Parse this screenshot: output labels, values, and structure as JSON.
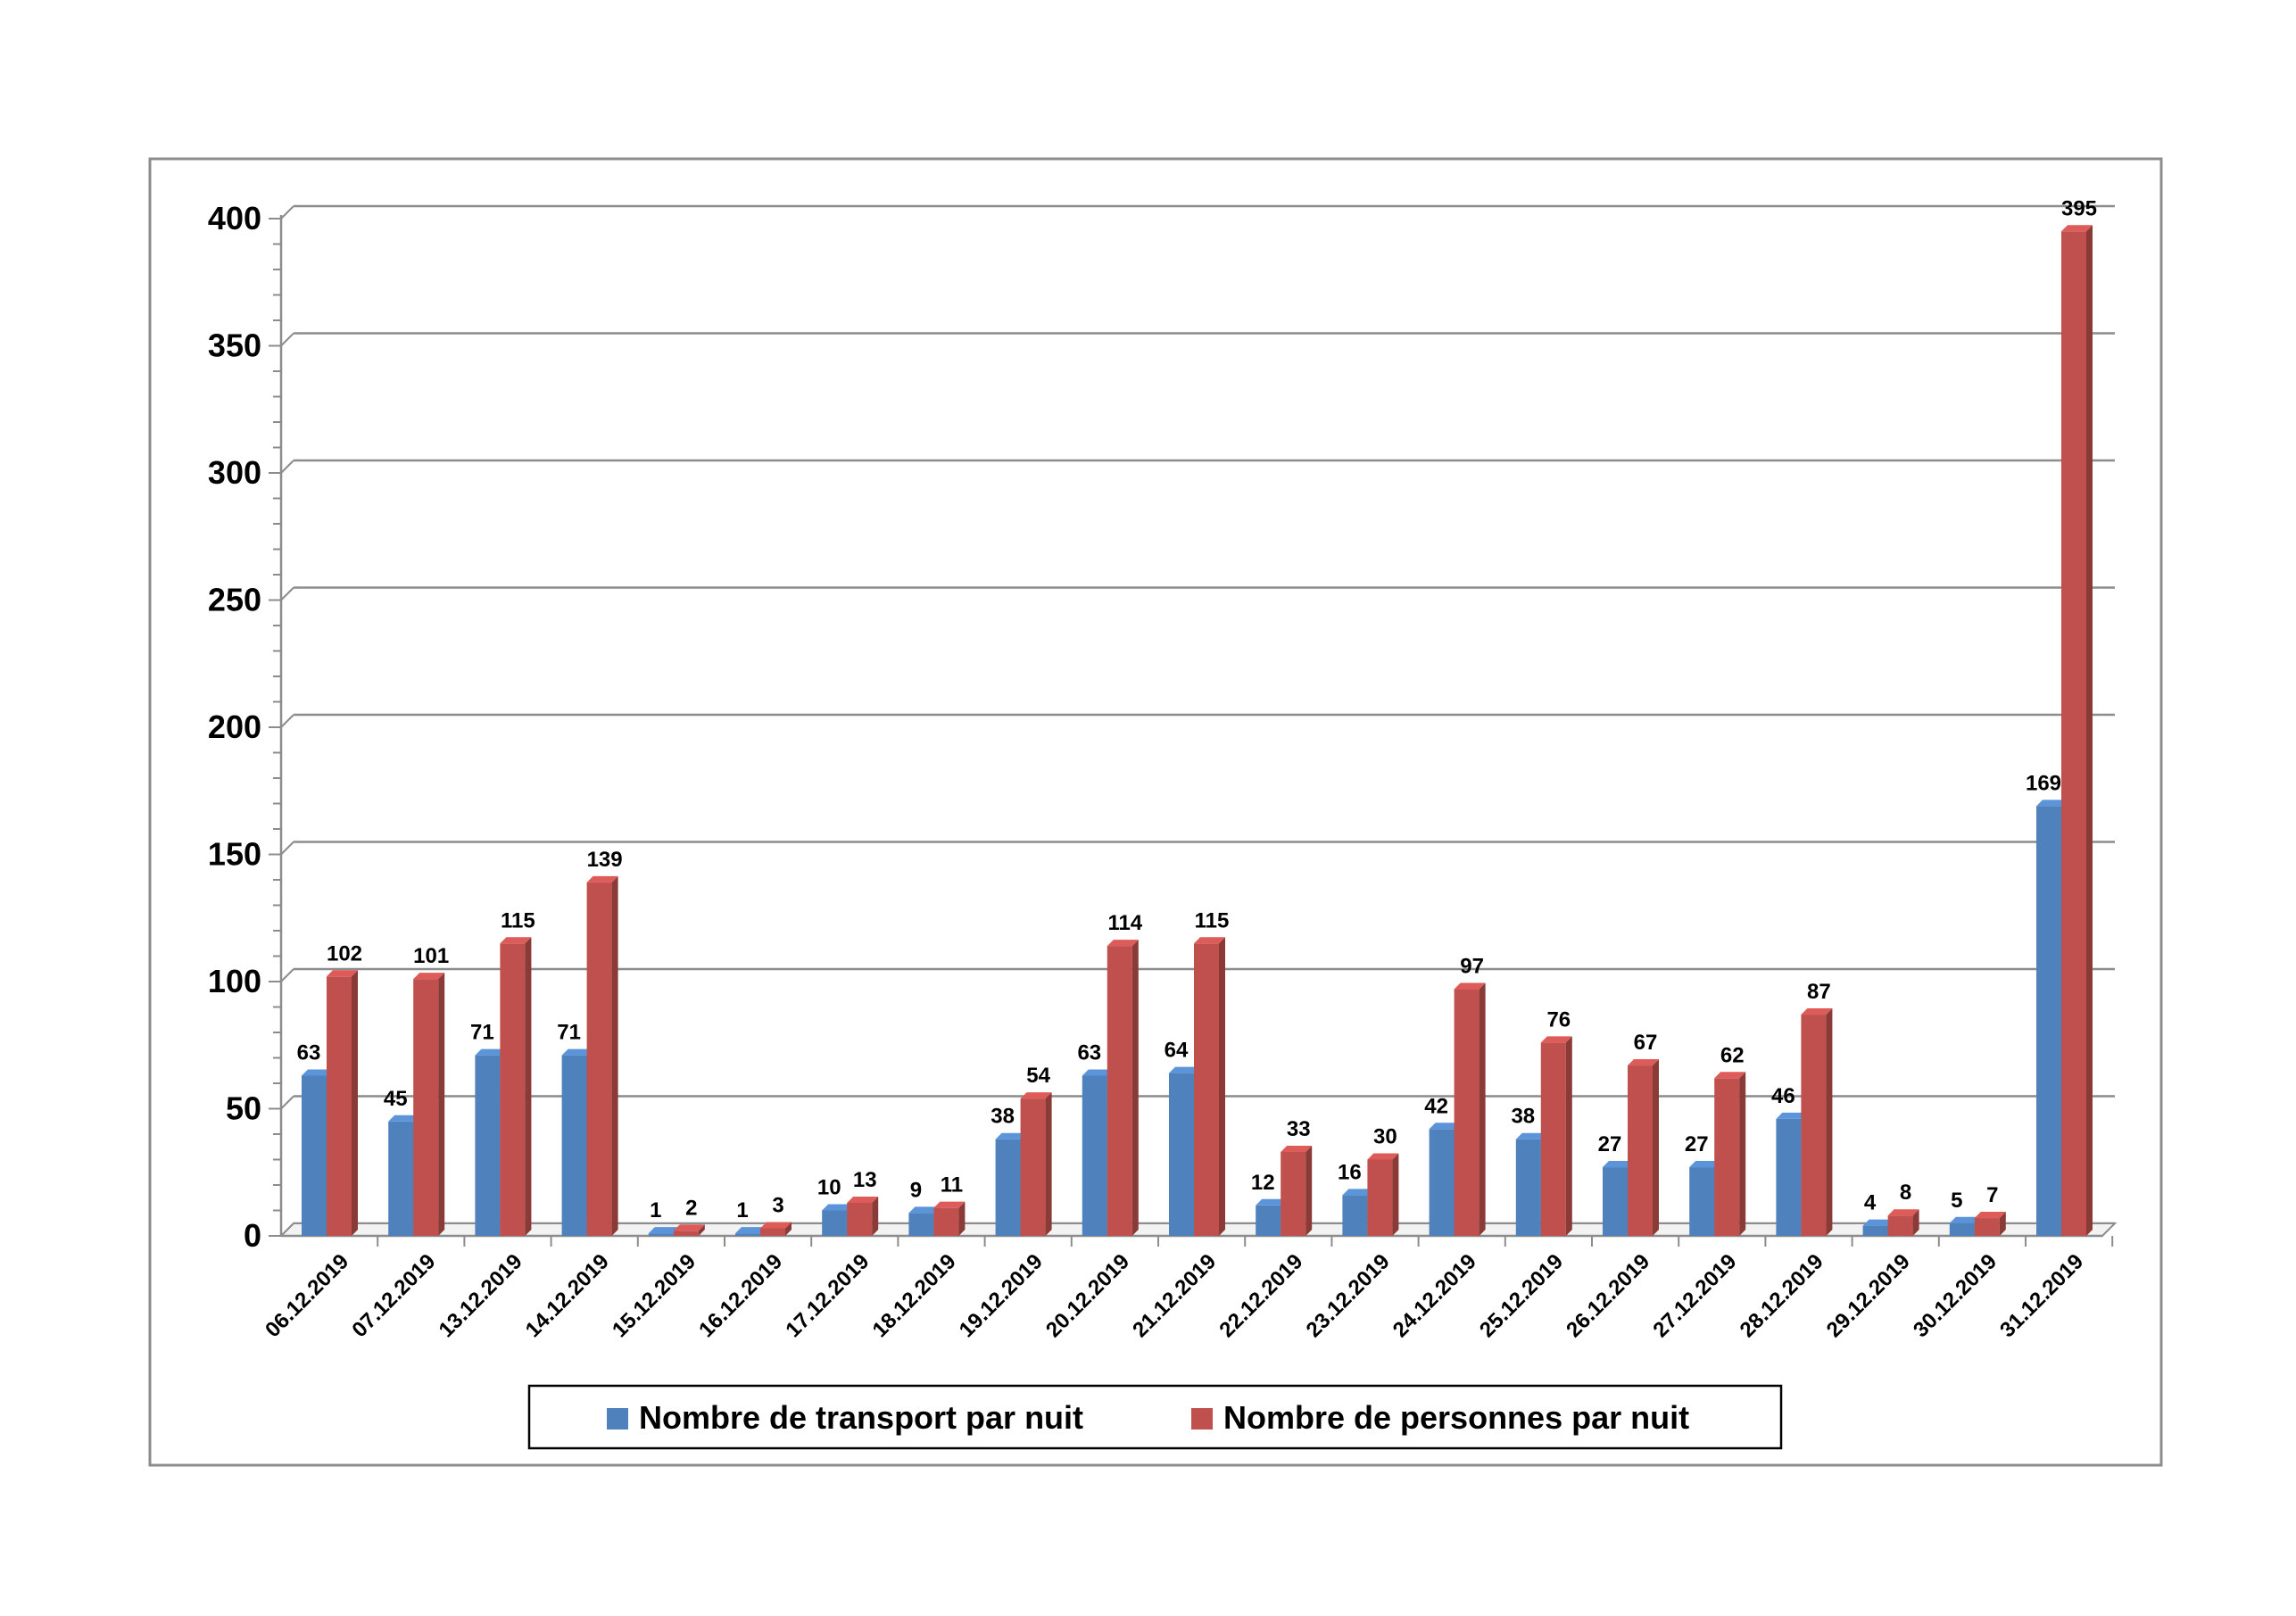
{
  "chart_data": {
    "type": "bar",
    "title": "",
    "xlabel": "",
    "ylabel": "",
    "ylim": [
      0,
      400
    ],
    "yticks": [
      0,
      50,
      100,
      150,
      200,
      250,
      300,
      350,
      400
    ],
    "grid": true,
    "legend_position": "bottom",
    "categories": [
      "06.12.2019",
      "07.12.2019",
      "13.12.2019",
      "14.12.2019",
      "15.12.2019",
      "16.12.2019",
      "17.12.2019",
      "18.12.2019",
      "19.12.2019",
      "20.12.2019",
      "21.12.2019",
      "22.12.2019",
      "23.12.2019",
      "24.12.2019",
      "25.12.2019",
      "26.12.2019",
      "27.12.2019",
      "28.12.2019",
      "29.12.2019",
      "30.12.2019",
      "31.12.2019"
    ],
    "series": [
      {
        "name": "Nombre de transport par nuit",
        "color": "#4F81BD",
        "values": [
          63,
          45,
          71,
          71,
          1,
          1,
          10,
          9,
          38,
          63,
          64,
          12,
          16,
          42,
          38,
          27,
          27,
          46,
          4,
          5,
          169
        ]
      },
      {
        "name": "Nombre de personnes par nuit",
        "color": "#C0504D",
        "values": [
          102,
          101,
          115,
          139,
          2,
          3,
          13,
          11,
          54,
          114,
          115,
          33,
          30,
          97,
          76,
          67,
          62,
          87,
          8,
          7,
          395
        ]
      }
    ]
  }
}
